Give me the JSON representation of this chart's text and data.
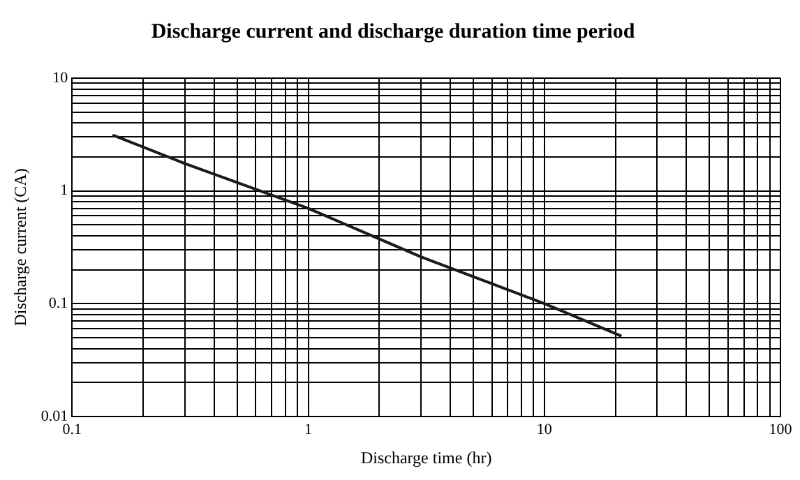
{
  "chart_data": {
    "type": "line",
    "title": "Discharge current and discharge duration time period",
    "xlabel": "Discharge time (hr)",
    "ylabel": "Discharge current (CA)",
    "log": "xy",
    "grid": true,
    "legend": false,
    "marker": "none",
    "line_style": "solid",
    "x": [
      0.15,
      0.3,
      1,
      3,
      10,
      21
    ],
    "series": [
      {
        "color": "#1a1a1a",
        "values": [
          3.1,
          1.75,
          0.7,
          0.26,
          0.1,
          0.052
        ]
      }
    ],
    "xlim": [
      0.1,
      100
    ],
    "ylim": [
      0.01,
      10
    ],
    "xticks": [
      0.1,
      {
        "value": 0.2,
        "label": null
      },
      {
        "value": 0.3,
        "label": null
      },
      {
        "value": 0.4,
        "label": null
      },
      {
        "value": 0.5,
        "label": null
      },
      {
        "value": 0.6,
        "label": null
      },
      {
        "value": 0.7,
        "label": null
      },
      {
        "value": 0.8,
        "label": null
      },
      {
        "value": 0.9,
        "label": null
      },
      1,
      {
        "value": 2,
        "label": null
      },
      {
        "value": 3,
        "label": null
      },
      {
        "value": 4,
        "label": null
      },
      {
        "value": 5,
        "label": null
      },
      {
        "value": 6,
        "label": null
      },
      {
        "value": 7,
        "label": null
      },
      {
        "value": 8,
        "label": null
      },
      {
        "value": 9,
        "label": null
      },
      10,
      {
        "value": 20,
        "label": null
      },
      {
        "value": 30,
        "label": null
      },
      {
        "value": 40,
        "label": null
      },
      {
        "value": 50,
        "label": null
      },
      {
        "value": 60,
        "label": null
      },
      {
        "value": 70,
        "label": null
      },
      {
        "value": 80,
        "label": null
      },
      {
        "value": 90,
        "label": null
      },
      100
    ],
    "yticks": [
      0.01,
      {
        "value": 0.02,
        "label": null
      },
      {
        "value": 0.03,
        "label": null
      },
      {
        "value": 0.04,
        "label": null
      },
      {
        "value": 0.05,
        "label": null
      },
      {
        "value": 0.06,
        "label": null
      },
      {
        "value": 0.07,
        "label": null
      },
      {
        "value": 0.08,
        "label": null
      },
      {
        "value": 0.09,
        "label": null
      },
      0.1,
      {
        "value": 0.2,
        "label": null
      },
      {
        "value": 0.3,
        "label": null
      },
      {
        "value": 0.4,
        "label": null
      },
      {
        "value": 0.5,
        "label": null
      },
      {
        "value": 0.6,
        "label": null
      },
      {
        "value": 0.7,
        "label": null
      },
      {
        "value": 0.8,
        "label": null
      },
      {
        "value": 0.9,
        "label": null
      },
      1,
      {
        "value": 2,
        "label": null
      },
      {
        "value": 3,
        "label": null
      },
      {
        "value": 4,
        "label": null
      },
      {
        "value": 5,
        "label": null
      },
      {
        "value": 6,
        "label": null
      },
      {
        "value": 7,
        "label": null
      },
      {
        "value": 8,
        "label": null
      },
      {
        "value": 9,
        "label": null
      },
      10
    ]
  }
}
